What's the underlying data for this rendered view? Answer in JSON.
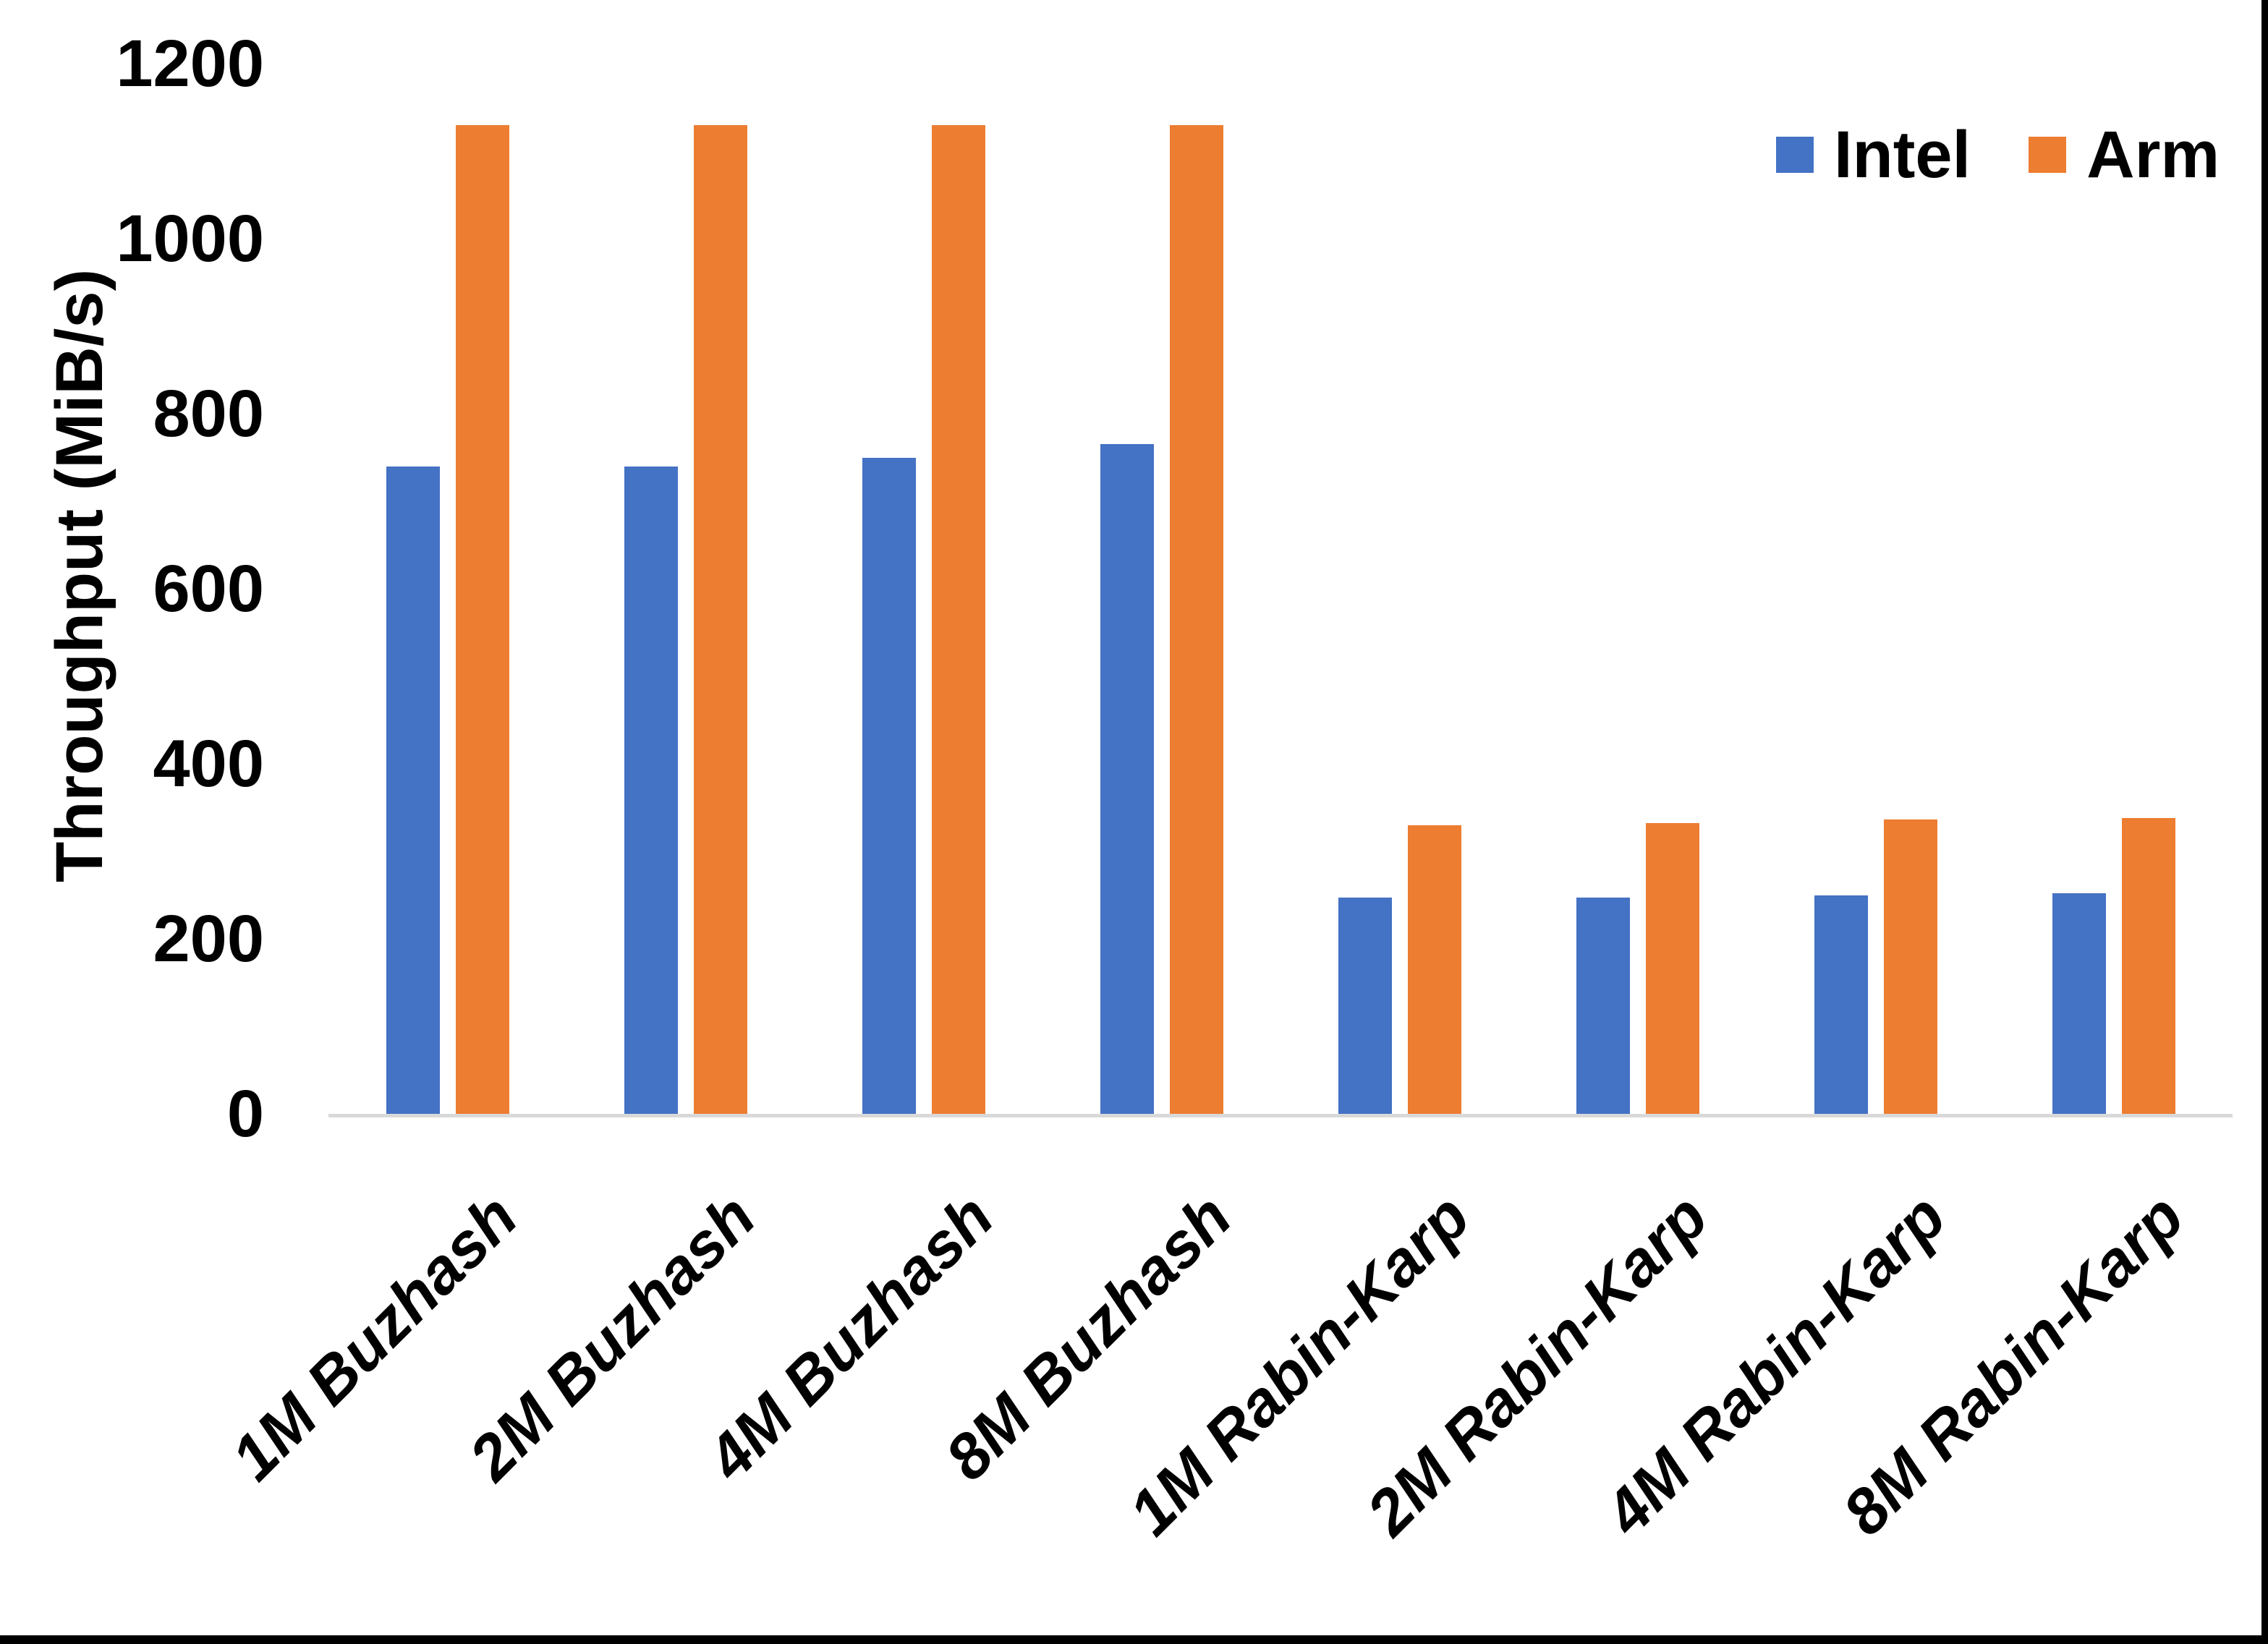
{
  "chart_data": {
    "type": "bar",
    "categories": [
      "1M Buzhash",
      "2M Buzhash",
      "4M Buzhash",
      "8M Buzhash",
      "1M Rabin-Karp",
      "2M Rabin-Karp",
      "4M Rabin-Karp",
      "8M Rabin-Karp"
    ],
    "series": [
      {
        "name": "Intel",
        "color": "#4472C4",
        "values": [
          740,
          740,
          750,
          765,
          247,
          247,
          250,
          252
        ]
      },
      {
        "name": "Arm",
        "color": "#ED7D31",
        "values": [
          1130,
          1130,
          1130,
          1130,
          330,
          332,
          336,
          338
        ]
      }
    ],
    "title": "",
    "xlabel": "",
    "ylabel": "Throughput (MiB/s)",
    "ylim": [
      0,
      1200
    ],
    "yticks": [
      0,
      200,
      400,
      600,
      800,
      1000,
      1200
    ],
    "grid": false,
    "legend_position": "top-right"
  },
  "legend": {
    "items": [
      {
        "label": "Intel",
        "color": "#4472C4"
      },
      {
        "label": "Arm",
        "color": "#ED7D31"
      }
    ]
  },
  "colors": {
    "background": "#FFFFFF",
    "axis_line": "#D9D9D9",
    "text": "#000000",
    "frame": "#000000"
  }
}
